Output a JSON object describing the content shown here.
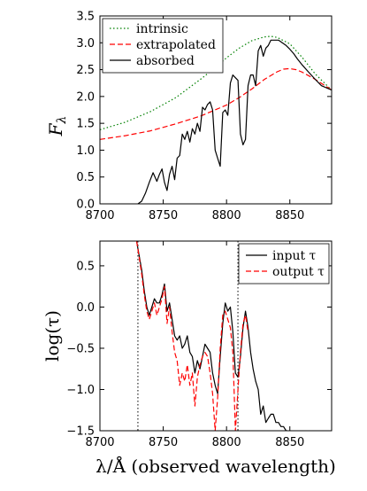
{
  "chart_data": [
    {
      "type": "line",
      "ylabel": "F",
      "ylabel_subscript": "λ",
      "xlim": [
        8700,
        8883
      ],
      "ylim": [
        0.0,
        3.5
      ],
      "xticks": [
        "8700",
        "8750",
        "8800",
        "8850"
      ],
      "yticks": [
        "0.0",
        "0.5",
        "1.0",
        "1.5",
        "2.0",
        "2.5",
        "3.0",
        "3.5"
      ],
      "xtick_values": [
        8700,
        8750,
        8800,
        8850
      ],
      "ytick_values": [
        0.0,
        0.5,
        1.0,
        1.5,
        2.0,
        2.5,
        3.0,
        3.5
      ],
      "legend_position": "top-left",
      "grid": false,
      "series": [
        {
          "name": "intrinsic",
          "color": "#008000",
          "dash": "dotted",
          "x": [
            8700,
            8720,
            8740,
            8760,
            8780,
            8790,
            8800,
            8810,
            8820,
            8830,
            8835,
            8840,
            8850,
            8860,
            8870,
            8883
          ],
          "y": [
            1.38,
            1.52,
            1.72,
            1.98,
            2.33,
            2.52,
            2.72,
            2.9,
            3.04,
            3.11,
            3.12,
            3.1,
            2.98,
            2.72,
            2.42,
            2.12
          ]
        },
        {
          "name": "extrapolated",
          "color": "#ff0000",
          "dash": "dashed",
          "x": [
            8700,
            8720,
            8740,
            8760,
            8780,
            8800,
            8810,
            8820,
            8830,
            8840,
            8845,
            8850,
            8855,
            8860,
            8870,
            8883
          ],
          "y": [
            1.2,
            1.27,
            1.36,
            1.49,
            1.64,
            1.84,
            1.98,
            2.14,
            2.32,
            2.46,
            2.51,
            2.52,
            2.5,
            2.45,
            2.32,
            2.12
          ]
        },
        {
          "name": "absorbed",
          "color": "#000000",
          "dash": "solid",
          "x": [
            8730,
            8733,
            8736,
            8739,
            8742,
            8745,
            8747,
            8749,
            8751,
            8753,
            8755,
            8757,
            8759,
            8761,
            8763,
            8765,
            8767,
            8769,
            8771,
            8773,
            8775,
            8777,
            8779,
            8781,
            8783,
            8785,
            8787,
            8789,
            8791,
            8793,
            8795,
            8797,
            8799,
            8801,
            8803,
            8805,
            8807,
            8809,
            8811,
            8813,
            8815,
            8817,
            8819,
            8821,
            8823,
            8825,
            8827,
            8829,
            8831,
            8833,
            8835,
            8838,
            8841,
            8844,
            8847,
            8850,
            8853,
            8856,
            8860,
            8865,
            8870,
            8875,
            8883
          ],
          "y": [
            0.0,
            0.05,
            0.2,
            0.4,
            0.58,
            0.42,
            0.55,
            0.65,
            0.4,
            0.25,
            0.55,
            0.7,
            0.45,
            0.85,
            0.9,
            1.3,
            1.2,
            1.35,
            1.15,
            1.4,
            1.3,
            1.5,
            1.35,
            1.8,
            1.75,
            1.85,
            1.9,
            1.75,
            1.0,
            0.85,
            0.7,
            1.7,
            1.75,
            1.65,
            2.25,
            2.4,
            2.35,
            2.3,
            1.3,
            1.1,
            1.2,
            2.2,
            2.4,
            2.4,
            2.2,
            2.85,
            2.95,
            2.75,
            2.9,
            2.95,
            3.05,
            3.05,
            3.05,
            3.0,
            2.95,
            2.88,
            2.8,
            2.7,
            2.58,
            2.45,
            2.32,
            2.2,
            2.12
          ]
        }
      ]
    },
    {
      "type": "line",
      "xlabel": "λ/Å (observed wavelength)",
      "ylabel": "log(τ)",
      "xlim": [
        8700,
        8883
      ],
      "ylim": [
        -1.5,
        0.8
      ],
      "xticks": [
        "8700",
        "8750",
        "8800",
        "8850"
      ],
      "yticks": [
        "0.5",
        "0.0",
        "−0.5",
        "−1.0",
        "−1.5"
      ],
      "xtick_values": [
        8700,
        8750,
        8800,
        8850
      ],
      "ytick_values": [
        0.5,
        0.0,
        -0.5,
        -1.0,
        -1.5
      ],
      "vlines": [
        8730,
        8809
      ],
      "legend_position": "top-right",
      "grid": false,
      "series": [
        {
          "name": "input τ",
          "color": "#000000",
          "dash": "solid",
          "x": [
            8729,
            8731,
            8733,
            8735,
            8737,
            8739,
            8741,
            8743,
            8745,
            8747,
            8749,
            8751,
            8753,
            8755,
            8757,
            8759,
            8761,
            8763,
            8765,
            8767,
            8769,
            8771,
            8773,
            8775,
            8777,
            8779,
            8781,
            8783,
            8785,
            8787,
            8789,
            8791,
            8793,
            8795,
            8797,
            8799,
            8801,
            8803,
            8805,
            8807,
            8809,
            8811,
            8813,
            8815,
            8817,
            8819,
            8821,
            8823,
            8825,
            8827,
            8829,
            8831,
            8833,
            8835,
            8837,
            8839,
            8841,
            8843,
            8845,
            8847,
            8848
          ],
          "y": [
            0.8,
            0.62,
            0.45,
            0.2,
            0.0,
            -0.1,
            0.0,
            0.1,
            0.05,
            0.05,
            0.15,
            0.28,
            -0.05,
            0.05,
            -0.15,
            -0.35,
            -0.4,
            -0.35,
            -0.5,
            -0.45,
            -0.35,
            -0.55,
            -0.6,
            -0.8,
            -0.65,
            -0.75,
            -0.6,
            -0.45,
            -0.5,
            -0.55,
            -0.8,
            -0.95,
            -1.05,
            -0.6,
            -0.2,
            0.05,
            -0.05,
            0.0,
            -0.3,
            -0.8,
            -0.85,
            -0.6,
            -0.25,
            -0.05,
            -0.25,
            -0.55,
            -0.75,
            -0.9,
            -1.0,
            -1.3,
            -1.2,
            -1.4,
            -1.35,
            -1.3,
            -1.3,
            -1.4,
            -1.4,
            -1.45,
            -1.45,
            -1.5,
            -1.5
          ]
        },
        {
          "name": "output τ",
          "color": "#ff0000",
          "dash": "dashed",
          "x": [
            8729,
            8731,
            8733,
            8735,
            8737,
            8739,
            8741,
            8743,
            8745,
            8747,
            8749,
            8751,
            8753,
            8755,
            8757,
            8759,
            8761,
            8763,
            8765,
            8767,
            8769,
            8771,
            8773,
            8775,
            8777,
            8779,
            8781,
            8783,
            8785,
            8787,
            8789,
            8791,
            8793,
            8795,
            8797,
            8799,
            8801,
            8803,
            8805,
            8807,
            8809,
            8811,
            8813,
            8815,
            8817
          ],
          "y": [
            0.8,
            0.6,
            0.4,
            0.15,
            -0.05,
            -0.15,
            -0.05,
            0.05,
            -0.1,
            0.0,
            0.1,
            0.25,
            -0.2,
            0.0,
            -0.3,
            -0.55,
            -0.65,
            -0.95,
            -0.8,
            -0.9,
            -0.7,
            -0.95,
            -0.8,
            -1.2,
            -0.85,
            -0.7,
            -0.6,
            -0.55,
            -0.6,
            -0.8,
            -1.05,
            -1.5,
            -1.1,
            -0.5,
            -0.1,
            -0.05,
            -0.15,
            -0.25,
            -0.55,
            -1.5,
            -1.0,
            -0.55,
            -0.2,
            -0.1,
            -0.3
          ]
        }
      ]
    }
  ]
}
